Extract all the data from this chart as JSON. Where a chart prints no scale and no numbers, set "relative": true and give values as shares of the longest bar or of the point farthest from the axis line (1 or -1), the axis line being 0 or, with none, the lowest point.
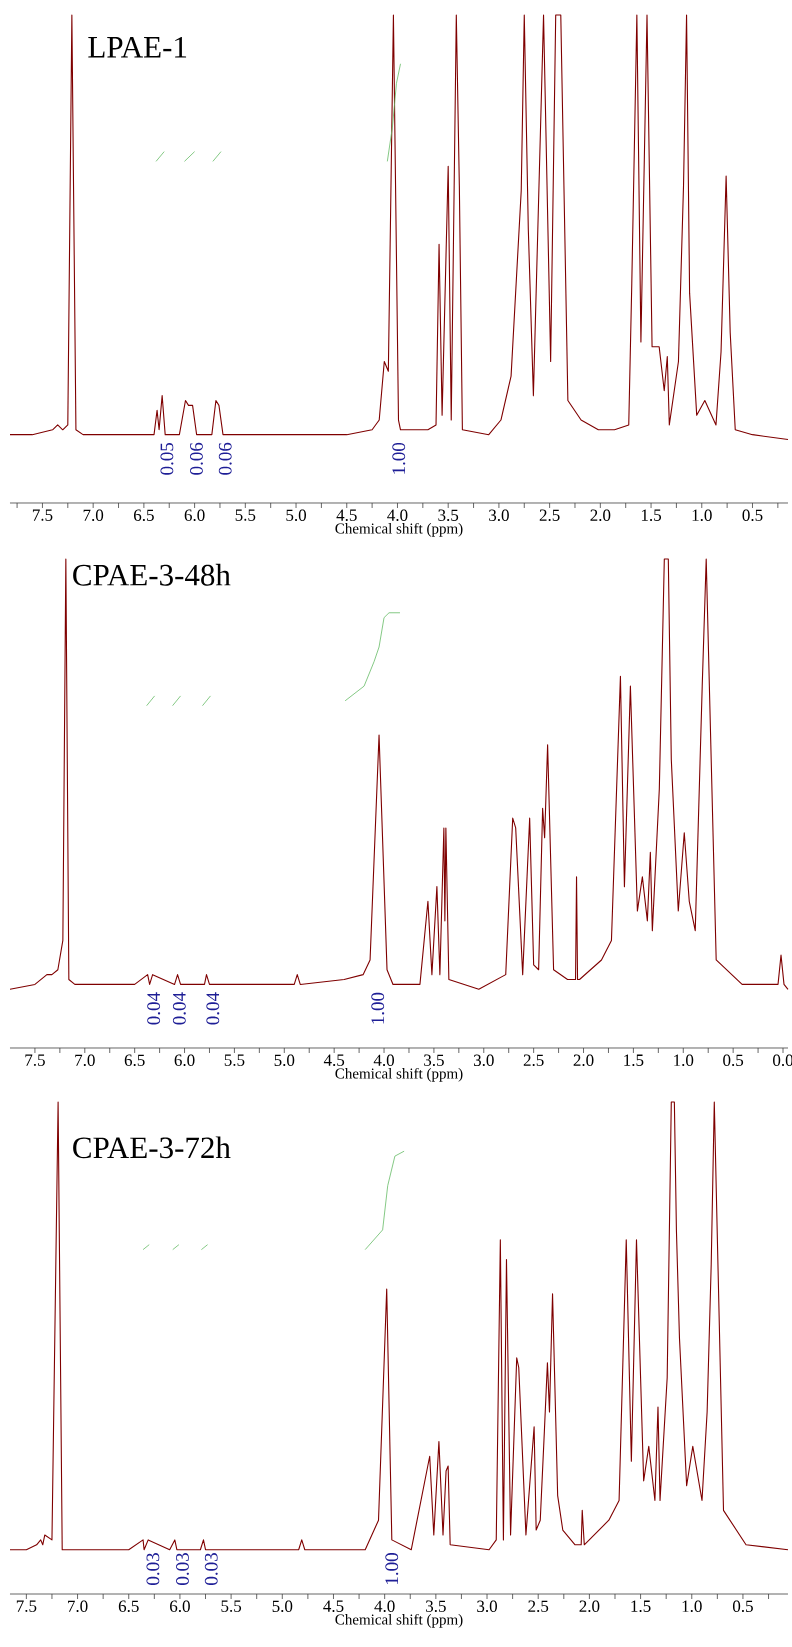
{
  "chart_data": [
    {
      "type": "line",
      "title": "LPAE-1",
      "xlabel": "Chemical shift (ppm)",
      "relative": true,
      "marker": "none",
      "line_style": "solid",
      "xlim": [
        7.82,
        0.15
      ],
      "xticks": [
        {
          "value": 7.75,
          "label": null
        },
        {
          "value": 7.5,
          "label": "7.5"
        },
        {
          "value": 7.25,
          "label": null
        },
        {
          "value": 7.0,
          "label": "7.0"
        },
        {
          "value": 6.75,
          "label": null
        },
        {
          "value": 6.5,
          "label": "6.5"
        },
        {
          "value": 6.25,
          "label": null
        },
        {
          "value": 6.0,
          "label": "6.0"
        },
        {
          "value": 5.75,
          "label": null
        },
        {
          "value": 5.5,
          "label": "5.5"
        },
        {
          "value": 5.25,
          "label": null
        },
        {
          "value": 5.0,
          "label": "5.0"
        },
        {
          "value": 4.75,
          "label": null
        },
        {
          "value": 4.5,
          "label": "4.5"
        },
        {
          "value": 4.25,
          "label": null
        },
        {
          "value": 4.0,
          "label": "4.0"
        },
        {
          "value": 3.75,
          "label": null
        },
        {
          "value": 3.5,
          "label": "3.5"
        },
        {
          "value": 3.25,
          "label": null
        },
        {
          "value": 3.0,
          "label": "3.0"
        },
        {
          "value": 2.75,
          "label": null
        },
        {
          "value": 2.5,
          "label": "2.5"
        },
        {
          "value": 2.25,
          "label": null
        },
        {
          "value": 2.0,
          "label": "2.0"
        },
        {
          "value": 1.75,
          "label": null
        },
        {
          "value": 1.5,
          "label": "1.5"
        },
        {
          "value": 1.25,
          "label": null
        },
        {
          "value": 1.0,
          "label": "1.0"
        },
        {
          "value": 0.75,
          "label": null
        },
        {
          "value": 0.5,
          "label": "0.5"
        },
        {
          "value": 0.25,
          "label": null
        }
      ],
      "series": [
        {
          "color": "#7f0000",
          "x": [
            7.82,
            7.6,
            7.4,
            7.35,
            7.3,
            7.25,
            7.21,
            7.17,
            7.1,
            6.9,
            6.6,
            6.4,
            6.37,
            6.35,
            6.32,
            6.29,
            6.15,
            6.09,
            6.06,
            6.02,
            5.98,
            5.83,
            5.79,
            5.76,
            5.72,
            5.4,
            4.85,
            4.5,
            4.25,
            4.18,
            4.13,
            4.09,
            4.04,
            3.99,
            3.97,
            3.7,
            3.62,
            3.59,
            3.56,
            3.5,
            3.47,
            3.42,
            3.39,
            3.36,
            3.1,
            2.98,
            2.88,
            2.78,
            2.75,
            2.71,
            2.66,
            2.56,
            2.49,
            2.44,
            2.39,
            2.32,
            2.19,
            2.02,
            1.86,
            1.72,
            1.69,
            1.64,
            1.6,
            1.54,
            1.49,
            1.42,
            1.37,
            1.34,
            1.32,
            1.23,
            1.18,
            1.15,
            1.12,
            1.05,
            0.97,
            0.86,
            0.81,
            0.76,
            0.72,
            0.67,
            0.5,
            0.15
          ],
          "values": [
            0.14,
            0.14,
            0.15,
            0.16,
            0.15,
            0.16,
            1,
            0.15,
            0.14,
            0.14,
            0.14,
            0.14,
            0.19,
            0.15,
            0.22,
            0.14,
            0.14,
            0.21,
            0.2,
            0.2,
            0.14,
            0.14,
            0.21,
            0.2,
            0.14,
            0.14,
            0.14,
            0.14,
            0.15,
            0.17,
            0.29,
            0.27,
            1,
            0.17,
            0.15,
            0.15,
            0.16,
            0.53,
            0.18,
            0.69,
            0.17,
            1,
            0.65,
            0.15,
            0.14,
            0.17,
            0.26,
            0.64,
            1,
            0.56,
            0.22,
            1,
            0.29,
            1,
            1,
            0.21,
            0.17,
            0.15,
            0.15,
            0.16,
            0.45,
            1,
            0.33,
            1,
            0.32,
            0.32,
            0.23,
            0.3,
            0.16,
            0.29,
            0.65,
            1,
            0.43,
            0.18,
            0.21,
            0.16,
            0.31,
            0.67,
            0.35,
            0.15,
            0.14,
            0.13
          ]
        },
        {
          "color": "#66bb66",
          "x": [
            6.38,
            6.3,
            6.25,
            6.1,
            6.0,
            5.95,
            5.82,
            5.74,
            5.7,
            4.1,
            4.05,
            4.01,
            3.97
          ],
          "values": [
            0.7,
            0.72,
            null,
            0.7,
            0.72,
            null,
            0.7,
            0.72,
            null,
            0.7,
            0.77,
            0.86,
            0.9
          ]
        }
      ],
      "annotations": [
        "0.05",
        "0.06",
        "0.06",
        "1.00"
      ]
    },
    {
      "type": "line",
      "title": "CPAE-3-48h",
      "xlabel": "Chemical shift (ppm)",
      "relative": true,
      "marker": "none",
      "line_style": "solid",
      "xlim": [
        7.75,
        -0.05
      ],
      "xticks": [
        {
          "value": 7.5,
          "label": "7.5"
        },
        {
          "value": 7.25,
          "label": null
        },
        {
          "value": 7.0,
          "label": "7.0"
        },
        {
          "value": 6.75,
          "label": null
        },
        {
          "value": 6.5,
          "label": "6.5"
        },
        {
          "value": 6.25,
          "label": null
        },
        {
          "value": 6.0,
          "label": "6.0"
        },
        {
          "value": 5.75,
          "label": null
        },
        {
          "value": 5.5,
          "label": "5.5"
        },
        {
          "value": 5.25,
          "label": null
        },
        {
          "value": 5.0,
          "label": "5.0"
        },
        {
          "value": 4.75,
          "label": null
        },
        {
          "value": 4.5,
          "label": "4.5"
        },
        {
          "value": 4.25,
          "label": null
        },
        {
          "value": 4.0,
          "label": "4.0"
        },
        {
          "value": 3.75,
          "label": null
        },
        {
          "value": 3.5,
          "label": "3.5"
        },
        {
          "value": 3.25,
          "label": null
        },
        {
          "value": 3.0,
          "label": "3.0"
        },
        {
          "value": 2.75,
          "label": null
        },
        {
          "value": 2.5,
          "label": "2.5"
        },
        {
          "value": 2.25,
          "label": null
        },
        {
          "value": 2.0,
          "label": "2.0"
        },
        {
          "value": 1.75,
          "label": null
        },
        {
          "value": 1.5,
          "label": "1.5"
        },
        {
          "value": 1.25,
          "label": null
        },
        {
          "value": 1.0,
          "label": "1.0"
        },
        {
          "value": 0.75,
          "label": null
        },
        {
          "value": 0.5,
          "label": "0.5"
        },
        {
          "value": 0.25,
          "label": null
        },
        {
          "value": 0.0,
          "label": "0.0"
        }
      ],
      "series": [
        {
          "color": "#7f0000",
          "x": [
            7.75,
            7.5,
            7.38,
            7.33,
            7.27,
            7.22,
            7.19,
            7.16,
            7.1,
            6.9,
            6.5,
            6.37,
            6.35,
            6.32,
            6.1,
            6.07,
            6.04,
            5.8,
            5.78,
            5.75,
            5.2,
            4.9,
            4.87,
            4.84,
            4.4,
            4.21,
            4.14,
            4.05,
            3.97,
            3.91,
            3.64,
            3.56,
            3.52,
            3.47,
            3.44,
            3.4,
            3.39,
            3.38,
            3.35,
            3.05,
            2.78,
            2.71,
            2.68,
            2.61,
            2.54,
            2.5,
            2.45,
            2.41,
            2.39,
            2.36,
            2.3,
            2.16,
            2.08,
            2.07,
            2.06,
            2.04,
            1.82,
            1.72,
            1.63,
            1.59,
            1.53,
            1.46,
            1.41,
            1.36,
            1.33,
            1.31,
            1.24,
            1.19,
            1.15,
            1.12,
            1.05,
            0.99,
            0.94,
            0.88,
            0.81,
            0.77,
            0.67,
            0.41,
            0.05,
            0.02,
            -0.01,
            -0.05
          ],
          "values": [
            0.12,
            0.13,
            0.15,
            0.15,
            0.16,
            0.22,
            1,
            0.14,
            0.13,
            0.13,
            0.13,
            0.15,
            0.13,
            0.15,
            0.13,
            0.15,
            0.13,
            0.13,
            0.15,
            0.13,
            0.13,
            0.13,
            0.15,
            0.13,
            0.14,
            0.15,
            0.18,
            0.64,
            0.16,
            0.13,
            0.13,
            0.3,
            0.15,
            0.33,
            0.15,
            0.45,
            0.26,
            0.45,
            0.14,
            0.12,
            0.15,
            0.47,
            0.45,
            0.15,
            0.47,
            0.17,
            0.16,
            0.49,
            0.43,
            0.62,
            0.16,
            0.14,
            0.14,
            0.35,
            0.14,
            0.14,
            0.18,
            0.22,
            0.76,
            0.33,
            0.74,
            0.28,
            0.35,
            0.26,
            0.4,
            0.24,
            0.53,
            1,
            1,
            0.59,
            0.28,
            0.44,
            0.3,
            0.24,
            0.74,
            1,
            0.18,
            0.13,
            0.13,
            0.19,
            0.13,
            0.12
          ]
        },
        {
          "color": "#66bb66",
          "x": [
            6.38,
            6.3,
            6.25,
            6.12,
            6.04,
            6.0,
            5.82,
            5.74,
            5.7,
            4.39,
            4.2,
            4.1,
            4.05,
            4.0,
            3.95,
            3.84
          ],
          "values": [
            0.7,
            0.72,
            null,
            0.7,
            0.72,
            null,
            0.7,
            0.72,
            null,
            0.71,
            0.74,
            0.79,
            0.82,
            0.88,
            0.89,
            0.89
          ]
        }
      ],
      "annotations": [
        "0.04",
        "0.04",
        "0.04",
        "1.00"
      ]
    },
    {
      "type": "line",
      "title": "CPAE-3-72h",
      "xlabel": "Chemical shift (ppm)",
      "relative": true,
      "marker": "none",
      "line_style": "solid",
      "xlim": [
        7.66,
        0.06
      ],
      "xticks": [
        {
          "value": 7.5,
          "label": "7.5"
        },
        {
          "value": 7.25,
          "label": null
        },
        {
          "value": 7.0,
          "label": "7.0"
        },
        {
          "value": 6.75,
          "label": null
        },
        {
          "value": 6.5,
          "label": "6.5"
        },
        {
          "value": 6.25,
          "label": null
        },
        {
          "value": 6.0,
          "label": "6.0"
        },
        {
          "value": 5.75,
          "label": null
        },
        {
          "value": 5.5,
          "label": "5.5"
        },
        {
          "value": 5.25,
          "label": null
        },
        {
          "value": 5.0,
          "label": "5.0"
        },
        {
          "value": 4.75,
          "label": null
        },
        {
          "value": 4.5,
          "label": "4.5"
        },
        {
          "value": 4.25,
          "label": null
        },
        {
          "value": 4.0,
          "label": "4.0"
        },
        {
          "value": 3.75,
          "label": null
        },
        {
          "value": 3.5,
          "label": "3.5"
        },
        {
          "value": 3.25,
          "label": null
        },
        {
          "value": 3.0,
          "label": "3.0"
        },
        {
          "value": 2.75,
          "label": null
        },
        {
          "value": 2.5,
          "label": "2.5"
        },
        {
          "value": 2.25,
          "label": null
        },
        {
          "value": 2.0,
          "label": "2.0"
        },
        {
          "value": 1.75,
          "label": null
        },
        {
          "value": 1.5,
          "label": "1.5"
        },
        {
          "value": 1.25,
          "label": null
        },
        {
          "value": 1.0,
          "label": "1.0"
        },
        {
          "value": 0.75,
          "label": null
        },
        {
          "value": 0.5,
          "label": "0.5"
        },
        {
          "value": 0.25,
          "label": null
        }
      ],
      "series": [
        {
          "color": "#7f0000",
          "x": [
            7.66,
            7.5,
            7.4,
            7.36,
            7.34,
            7.32,
            7.25,
            7.19,
            7.15,
            7.0,
            6.5,
            6.36,
            6.35,
            6.31,
            6.1,
            6.05,
            6.03,
            5.8,
            5.77,
            5.75,
            5.2,
            4.84,
            4.81,
            4.78,
            4.19,
            4.06,
            3.98,
            3.93,
            3.74,
            3.56,
            3.52,
            3.47,
            3.43,
            3.4,
            3.38,
            3.36,
            2.98,
            2.91,
            2.87,
            2.84,
            2.81,
            2.77,
            2.71,
            2.69,
            2.62,
            2.54,
            2.52,
            2.48,
            2.44,
            2.41,
            2.39,
            2.36,
            2.31,
            2.26,
            2.14,
            2.08,
            2.07,
            2.05,
            1.81,
            1.71,
            1.64,
            1.59,
            1.54,
            1.47,
            1.42,
            1.36,
            1.33,
            1.31,
            1.24,
            1.2,
            1.17,
            1.15,
            1.12,
            1.05,
            0.99,
            0.9,
            0.85,
            0.81,
            0.78,
            0.69,
            0.47,
            0.06
          ],
          "values": [
            0.09,
            0.09,
            0.1,
            0.11,
            0.1,
            0.12,
            0.11,
            1,
            0.09,
            0.09,
            0.09,
            0.11,
            0.09,
            0.11,
            0.09,
            0.11,
            0.09,
            0.09,
            0.11,
            0.09,
            0.09,
            0.09,
            0.11,
            0.09,
            0.09,
            0.15,
            0.62,
            0.11,
            0.09,
            0.28,
            0.12,
            0.31,
            0.12,
            0.25,
            0.26,
            0.1,
            0.09,
            0.11,
            0.72,
            0.11,
            0.68,
            0.12,
            0.48,
            0.46,
            0.12,
            0.34,
            0.13,
            0.15,
            0.33,
            0.47,
            0.37,
            0.61,
            0.2,
            0.13,
            0.1,
            0.1,
            0.17,
            0.1,
            0.15,
            0.19,
            0.72,
            0.27,
            0.72,
            0.23,
            0.3,
            0.19,
            0.38,
            0.19,
            0.44,
            1,
            1,
            0.74,
            0.52,
            0.22,
            0.3,
            0.19,
            0.37,
            0.67,
            1,
            0.17,
            0.1,
            0.09
          ]
        },
        {
          "color": "#66bb66",
          "x": [
            6.36,
            6.3,
            6.25,
            6.07,
            6.01,
            5.95,
            5.79,
            5.73,
            5.7,
            4.19,
            4.02,
            3.97,
            3.9,
            3.81
          ],
          "values": [
            0.7,
            0.71,
            null,
            0.7,
            0.71,
            null,
            0.7,
            0.71,
            null,
            0.7,
            0.74,
            0.83,
            0.89,
            0.9
          ]
        }
      ],
      "annotations": [
        "0.03",
        "0.03",
        "0.03",
        "1.00"
      ]
    }
  ]
}
